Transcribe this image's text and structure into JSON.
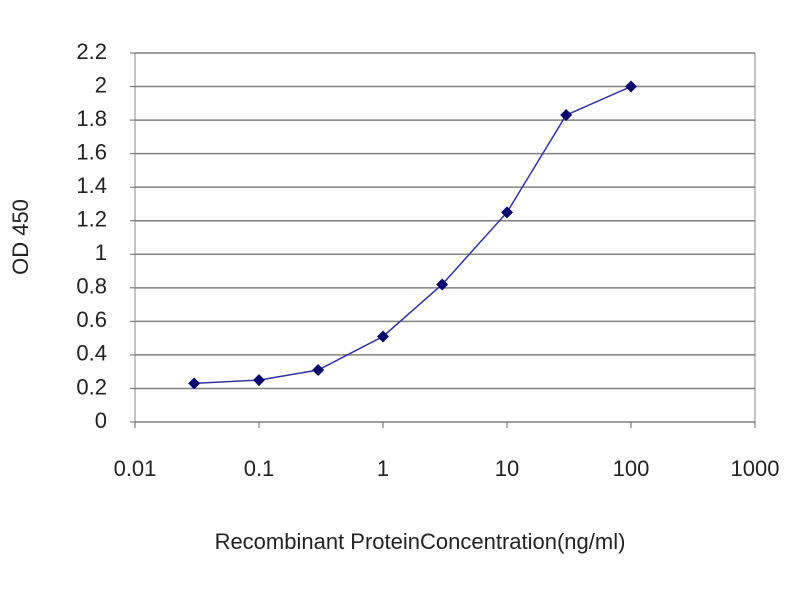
{
  "chart_data": {
    "type": "line",
    "y_label": "OD 450",
    "x_label": "Recombinant ProteinConcentration(ng/ml)",
    "x": [
      0.03,
      0.1,
      0.3,
      1,
      3,
      10,
      30,
      100
    ],
    "values": [
      0.23,
      0.25,
      0.31,
      0.51,
      0.82,
      1.25,
      1.83,
      2.0
    ],
    "color": "#33339a",
    "marker_color": "#0a0a6e",
    "xscale": "log",
    "xlim": [
      0.01,
      1000
    ],
    "xticks": [
      0.01,
      0.1,
      1,
      10,
      100,
      1000
    ],
    "ylim": [
      0,
      2.2
    ],
    "yticks": [
      0,
      0.2,
      0.4,
      0.6,
      0.8,
      1,
      1.2,
      1.4,
      1.6,
      1.8,
      2,
      2.2
    ],
    "grid": true
  }
}
